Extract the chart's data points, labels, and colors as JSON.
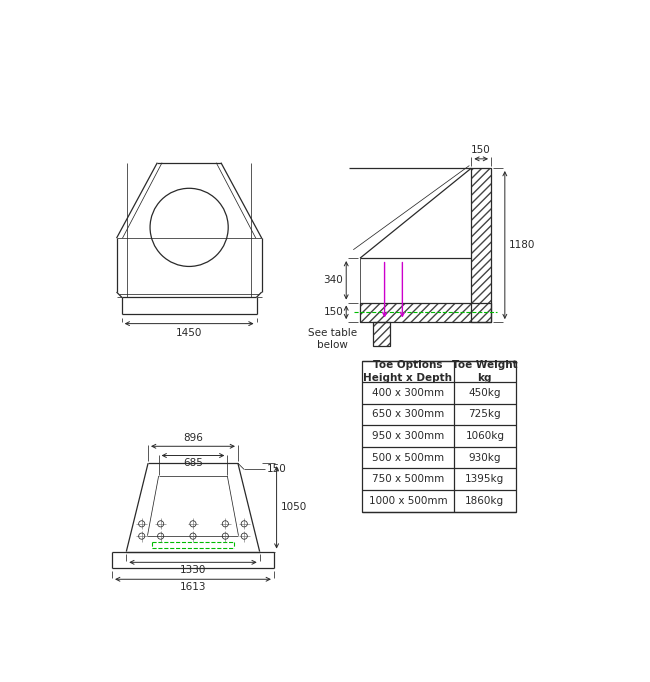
{
  "bg_color": "#ffffff",
  "line_color": "#2a2a2a",
  "dim_color": "#2a2a2a",
  "green_color": "#00bb00",
  "magenta_color": "#cc00cc",
  "font_size_dim": 7.5,
  "table_data": {
    "headers": [
      "Toe Options\nHeight x Depth",
      "Toe Weight\nkg"
    ],
    "rows": [
      [
        "400 x 300mm",
        "450kg"
      ],
      [
        "650 x 300mm",
        "725kg"
      ],
      [
        "950 x 300mm",
        "1060kg"
      ],
      [
        "500 x 500mm",
        "930kg"
      ],
      [
        "750 x 500mm",
        "1395kg"
      ],
      [
        "1000 x 500mm",
        "1860kg"
      ]
    ]
  }
}
